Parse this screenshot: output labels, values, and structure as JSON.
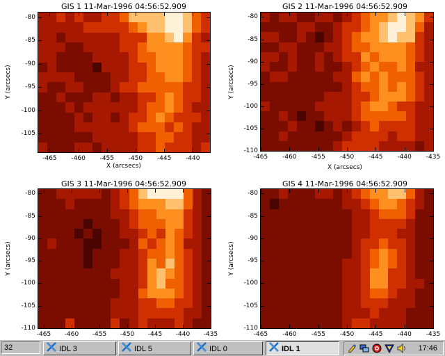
{
  "panels": [
    {
      "title": "GIS 1 11-Mar-1996 04:56:52.909",
      "xlabel": "X (arcsecs)",
      "ylabel": "Y (arcsecs)",
      "x_ticks": [
        "-465",
        "-460",
        "-455",
        "-450",
        "-445",
        "-440"
      ],
      "y_ticks": [
        "-80",
        "-85",
        "-90",
        "-95",
        "-100",
        "-105"
      ]
    },
    {
      "title": "GIS 2 11-Mar-1996 04:56:52.909",
      "xlabel": "X (arcsecs)",
      "ylabel": "Y (arcsecs)",
      "x_ticks": [
        "-465",
        "-460",
        "-455",
        "-450",
        "-445",
        "-440",
        "-435"
      ],
      "y_ticks": [
        "-80",
        "-85",
        "-90",
        "-95",
        "-100",
        "-105",
        "-110"
      ]
    },
    {
      "title": "GIS 3 11-Mar-1996 04:56:52.909",
      "xlabel": "",
      "ylabel": "Y (arcsecs)",
      "x_ticks": [
        "-465",
        "-460",
        "-455",
        "-450",
        "-445",
        "-440",
        "-435"
      ],
      "y_ticks": [
        "-80",
        "-85",
        "-90",
        "-95",
        "-100",
        "-105",
        "-110"
      ]
    },
    {
      "title": "GIS 4 11-Mar-1996 04:56:52.909",
      "xlabel": "",
      "ylabel": "Y (arcsecs)",
      "x_ticks": [
        "-465",
        "-460",
        "-455",
        "-450",
        "-445",
        "-440",
        "-435"
      ],
      "y_ticks": [
        "-80",
        "-85",
        "-90",
        "-95",
        "-100",
        "-105",
        "-110"
      ]
    }
  ],
  "heatmap_colormap": [
    "#200000",
    "#4a0500",
    "#7a0c00",
    "#a61800",
    "#d03000",
    "#f06000",
    "#ff9020",
    "#ffc070",
    "#fff0d8"
  ],
  "heatmaps": [
    {
      "x_range": [
        -467,
        -437
      ],
      "y_range": [
        -109,
        -79
      ],
      "rows": [
        [
          3,
          3,
          4,
          3,
          4,
          3,
          3,
          4,
          4,
          5,
          7,
          7,
          7,
          7,
          8,
          8,
          7,
          5,
          4
        ],
        [
          3,
          3,
          3,
          3,
          3,
          4,
          4,
          4,
          4,
          4,
          5,
          6,
          7,
          7,
          8,
          8,
          7,
          5,
          4
        ],
        [
          3,
          3,
          2,
          3,
          3,
          3,
          3,
          3,
          3,
          4,
          4,
          4,
          6,
          6,
          7,
          8,
          6,
          4,
          3
        ],
        [
          3,
          3,
          3,
          2,
          2,
          3,
          3,
          3,
          3,
          4,
          4,
          5,
          6,
          6,
          6,
          6,
          5,
          4,
          4
        ],
        [
          3,
          3,
          2,
          2,
          2,
          2,
          3,
          3,
          3,
          3,
          4,
          5,
          5,
          6,
          6,
          6,
          5,
          4,
          3
        ],
        [
          2,
          3,
          2,
          2,
          2,
          2,
          1,
          3,
          3,
          3,
          4,
          4,
          5,
          6,
          6,
          6,
          5,
          4,
          3
        ],
        [
          3,
          3,
          3,
          3,
          2,
          2,
          2,
          2,
          3,
          3,
          4,
          4,
          5,
          5,
          6,
          6,
          5,
          4,
          3
        ],
        [
          3,
          2,
          2,
          3,
          3,
          2,
          2,
          2,
          3,
          4,
          4,
          5,
          5,
          5,
          5,
          5,
          4,
          4,
          3
        ],
        [
          2,
          2,
          3,
          2,
          2,
          2,
          3,
          3,
          2,
          3,
          3,
          4,
          4,
          5,
          6,
          5,
          4,
          4,
          3
        ],
        [
          2,
          2,
          2,
          3,
          2,
          3,
          3,
          3,
          3,
          3,
          3,
          4,
          5,
          5,
          6,
          5,
          4,
          3,
          3
        ],
        [
          2,
          2,
          2,
          2,
          3,
          2,
          3,
          3,
          2,
          3,
          4,
          4,
          5,
          6,
          5,
          4,
          4,
          4,
          3
        ],
        [
          2,
          2,
          2,
          2,
          3,
          3,
          3,
          3,
          3,
          3,
          4,
          5,
          5,
          5,
          4,
          5,
          4,
          3,
          3
        ],
        [
          2,
          2,
          2,
          2,
          2,
          2,
          3,
          3,
          3,
          3,
          3,
          4,
          4,
          5,
          5,
          4,
          4,
          3,
          3
        ],
        [
          3,
          2,
          2,
          2,
          3,
          3,
          2,
          3,
          3,
          3,
          3,
          4,
          4,
          5,
          4,
          4,
          4,
          3,
          4
        ]
      ]
    },
    {
      "x_range": [
        -465,
        -435
      ],
      "y_range": [
        -110,
        -79
      ],
      "rows": [
        [
          3,
          2,
          3,
          3,
          2,
          2,
          3,
          3,
          2,
          3,
          4,
          5,
          6,
          6,
          7,
          8,
          7,
          6,
          4
        ],
        [
          2,
          2,
          2,
          2,
          3,
          3,
          2,
          2,
          3,
          4,
          4,
          5,
          6,
          7,
          8,
          8,
          7,
          5,
          3
        ],
        [
          3,
          3,
          2,
          2,
          3,
          2,
          1,
          2,
          3,
          4,
          5,
          6,
          6,
          7,
          8,
          7,
          7,
          4,
          3
        ],
        [
          2,
          2,
          3,
          3,
          2,
          2,
          2,
          3,
          3,
          4,
          5,
          5,
          6,
          6,
          6,
          6,
          5,
          4,
          3
        ],
        [
          3,
          3,
          2,
          3,
          2,
          2,
          3,
          2,
          3,
          4,
          4,
          6,
          5,
          6,
          6,
          6,
          5,
          4,
          3
        ],
        [
          3,
          2,
          2,
          3,
          2,
          2,
          3,
          2,
          2,
          3,
          4,
          5,
          6,
          5,
          5,
          6,
          5,
          3,
          3
        ],
        [
          2,
          3,
          3,
          2,
          2,
          2,
          2,
          2,
          3,
          3,
          5,
          6,
          5,
          6,
          5,
          5,
          5,
          4,
          3
        ],
        [
          2,
          2,
          2,
          2,
          2,
          2,
          2,
          2,
          2,
          3,
          4,
          5,
          5,
          6,
          5,
          6,
          5,
          4,
          3
        ],
        [
          2,
          2,
          2,
          2,
          2,
          2,
          2,
          3,
          3,
          3,
          4,
          4,
          5,
          6,
          6,
          6,
          5,
          4,
          3
        ],
        [
          3,
          2,
          2,
          2,
          2,
          2,
          3,
          3,
          3,
          3,
          4,
          5,
          6,
          6,
          5,
          4,
          4,
          3,
          3
        ],
        [
          2,
          2,
          3,
          2,
          1,
          2,
          2,
          3,
          3,
          3,
          4,
          5,
          5,
          5,
          5,
          5,
          4,
          3,
          3
        ],
        [
          2,
          2,
          2,
          3,
          2,
          2,
          1,
          2,
          3,
          2,
          3,
          4,
          5,
          4,
          4,
          4,
          4,
          3,
          3
        ],
        [
          2,
          2,
          3,
          2,
          2,
          2,
          2,
          2,
          2,
          3,
          4,
          4,
          4,
          4,
          3,
          4,
          4,
          3,
          3
        ],
        [
          2,
          2,
          2,
          2,
          2,
          2,
          2,
          2,
          3,
          4,
          4,
          4,
          4,
          3,
          3,
          3,
          3,
          2,
          3
        ]
      ]
    },
    {
      "x_range": [
        -466,
        -435
      ],
      "y_range": [
        -110,
        -79
      ],
      "rows": [
        [
          2,
          2,
          3,
          3,
          3,
          3,
          3,
          2,
          3,
          4,
          5,
          7,
          8,
          8,
          8,
          8,
          5,
          3,
          2
        ],
        [
          2,
          2,
          2,
          3,
          2,
          2,
          2,
          2,
          3,
          4,
          5,
          6,
          6,
          6,
          7,
          7,
          5,
          3,
          2
        ],
        [
          2,
          2,
          2,
          2,
          2,
          2,
          2,
          2,
          3,
          3,
          4,
          5,
          5,
          6,
          6,
          6,
          4,
          3,
          2
        ],
        [
          2,
          2,
          2,
          2,
          2,
          1,
          2,
          2,
          2,
          3,
          4,
          5,
          5,
          5,
          6,
          6,
          4,
          3,
          2
        ],
        [
          2,
          2,
          2,
          2,
          1,
          2,
          1,
          2,
          2,
          3,
          3,
          4,
          5,
          4,
          6,
          5,
          4,
          3,
          2
        ],
        [
          2,
          3,
          2,
          2,
          2,
          1,
          1,
          2,
          2,
          2,
          3,
          5,
          4,
          5,
          6,
          5,
          3,
          3,
          2
        ],
        [
          2,
          2,
          2,
          2,
          2,
          1,
          2,
          2,
          2,
          3,
          3,
          4,
          5,
          5,
          6,
          5,
          4,
          3,
          2
        ],
        [
          2,
          2,
          2,
          2,
          2,
          1,
          2,
          2,
          2,
          3,
          3,
          4,
          6,
          5,
          7,
          5,
          4,
          3,
          2
        ],
        [
          2,
          2,
          2,
          2,
          2,
          2,
          2,
          2,
          3,
          3,
          3,
          4,
          6,
          7,
          6,
          5,
          4,
          3,
          2
        ],
        [
          2,
          2,
          2,
          2,
          2,
          2,
          2,
          2,
          2,
          3,
          3,
          4,
          6,
          7,
          5,
          5,
          4,
          3,
          2
        ],
        [
          2,
          2,
          2,
          2,
          2,
          2,
          2,
          2,
          2,
          3,
          3,
          5,
          6,
          6,
          6,
          5,
          4,
          3,
          2
        ],
        [
          2,
          2,
          2,
          2,
          2,
          2,
          2,
          2,
          3,
          3,
          3,
          4,
          4,
          5,
          5,
          4,
          4,
          3,
          2
        ],
        [
          2,
          2,
          2,
          2,
          2,
          2,
          2,
          2,
          3,
          3,
          3,
          4,
          4,
          4,
          4,
          4,
          3,
          3,
          2
        ],
        [
          2,
          2,
          2,
          4,
          2,
          2,
          2,
          2,
          4,
          2,
          3,
          4,
          3,
          3,
          3,
          4,
          3,
          2,
          2
        ]
      ]
    },
    {
      "x_range": [
        -465,
        -435
      ],
      "y_range": [
        -110,
        -79
      ],
      "rows": [
        [
          2,
          2,
          3,
          2,
          2,
          2,
          3,
          3,
          2,
          3,
          4,
          5,
          6,
          6,
          7,
          7,
          5,
          3,
          2
        ],
        [
          2,
          1,
          2,
          2,
          2,
          2,
          2,
          2,
          2,
          3,
          3,
          4,
          5,
          6,
          6,
          5,
          4,
          3,
          2
        ],
        [
          2,
          2,
          2,
          2,
          2,
          2,
          2,
          2,
          2,
          2,
          3,
          3,
          4,
          5,
          5,
          5,
          4,
          2,
          2
        ],
        [
          2,
          2,
          2,
          2,
          2,
          2,
          2,
          2,
          2,
          2,
          3,
          3,
          4,
          4,
          4,
          4,
          3,
          2,
          2
        ],
        [
          2,
          2,
          2,
          2,
          2,
          2,
          2,
          2,
          2,
          2,
          3,
          3,
          4,
          4,
          4,
          3,
          3,
          2,
          2
        ],
        [
          2,
          2,
          2,
          2,
          2,
          2,
          2,
          2,
          2,
          2,
          3,
          4,
          4,
          5,
          4,
          4,
          3,
          2,
          2
        ],
        [
          2,
          2,
          2,
          2,
          2,
          2,
          2,
          2,
          2,
          2,
          3,
          4,
          5,
          6,
          5,
          4,
          3,
          2,
          2
        ],
        [
          2,
          2,
          2,
          2,
          2,
          2,
          2,
          2,
          2,
          3,
          3,
          4,
          5,
          6,
          5,
          4,
          3,
          2,
          2
        ],
        [
          2,
          2,
          2,
          2,
          2,
          2,
          2,
          2,
          2,
          3,
          3,
          4,
          6,
          6,
          4,
          4,
          3,
          2,
          2
        ],
        [
          2,
          2,
          2,
          2,
          2,
          2,
          2,
          2,
          2,
          3,
          3,
          4,
          6,
          6,
          4,
          4,
          3,
          3,
          2
        ],
        [
          2,
          2,
          2,
          2,
          2,
          2,
          2,
          2,
          2,
          3,
          3,
          4,
          5,
          5,
          4,
          3,
          3,
          2,
          2
        ],
        [
          2,
          2,
          2,
          2,
          2,
          2,
          2,
          2,
          2,
          3,
          3,
          4,
          4,
          4,
          3,
          3,
          3,
          2,
          2
        ],
        [
          2,
          2,
          2,
          2,
          2,
          2,
          2,
          2,
          2,
          3,
          3,
          3,
          4,
          3,
          3,
          3,
          2,
          2,
          2
        ],
        [
          2,
          2,
          2,
          2,
          2,
          2,
          2,
          2,
          2,
          3,
          4,
          4,
          3,
          3,
          3,
          3,
          2,
          2,
          2
        ]
      ]
    }
  ],
  "taskbar": {
    "counter": "32",
    "buttons": [
      {
        "label": "IDL 3"
      },
      {
        "label": "IDL 5"
      },
      {
        "label": "IDL 0"
      },
      {
        "label": "IDL 1"
      }
    ],
    "clock": "17:46"
  }
}
